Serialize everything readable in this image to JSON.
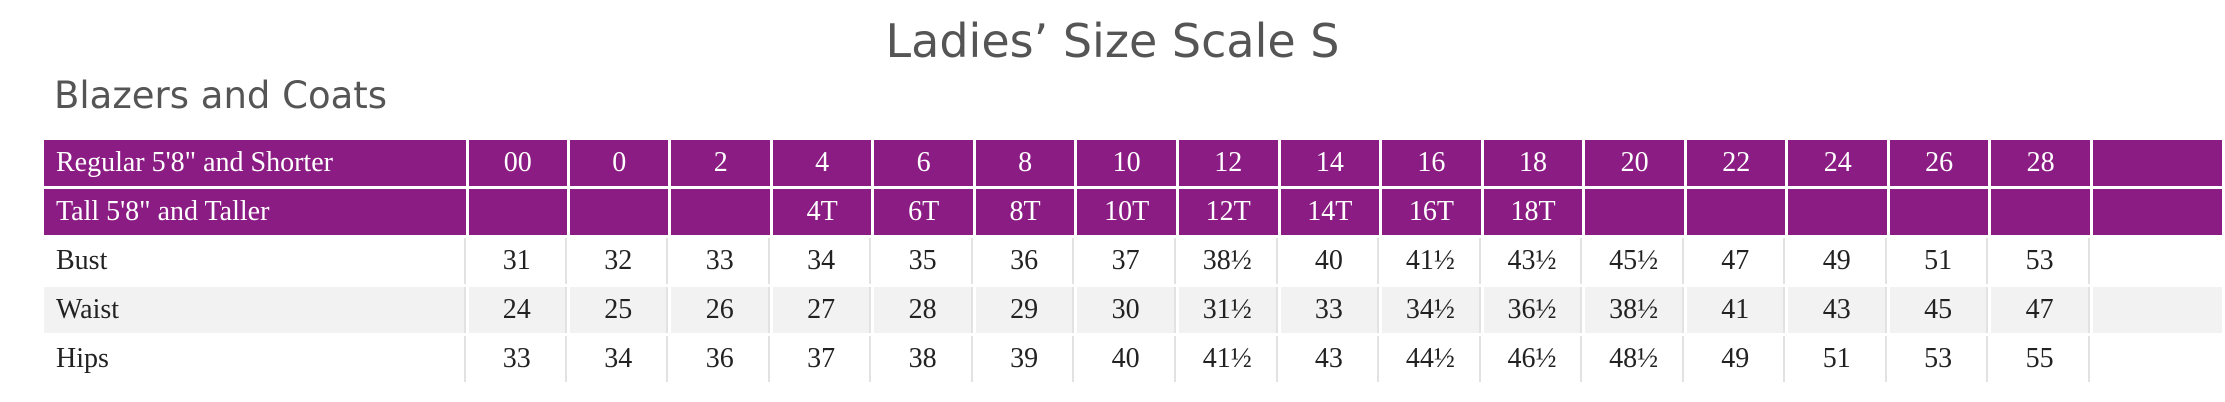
{
  "title": "Ladies’ Size Scale S",
  "subtitle": "Blazers and Coats",
  "table": {
    "header_rows": [
      {
        "label": "Regular 5'8\" and Shorter",
        "cells": [
          "00",
          "0",
          "2",
          "4",
          "6",
          "8",
          "10",
          "12",
          "14",
          "16",
          "18",
          "20",
          "22",
          "24",
          "26",
          "28"
        ]
      },
      {
        "label": "Tall 5'8\" and Taller",
        "cells": [
          null,
          null,
          null,
          "4T",
          "6T",
          "8T",
          "10T",
          "12T",
          "14T",
          "16T",
          "18T",
          null,
          null,
          null,
          null,
          null
        ]
      }
    ],
    "rows": [
      {
        "label": "Bust",
        "cells": [
          "31",
          "32",
          "33",
          "34",
          "35",
          "36",
          "37",
          "38½",
          "40",
          "41½",
          "43½",
          "45½",
          "47",
          "49",
          "51",
          "53"
        ]
      },
      {
        "label": "Waist",
        "cells": [
          "24",
          "25",
          "26",
          "27",
          "28",
          "29",
          "30",
          "31½",
          "33",
          "34½",
          "36½",
          "38½",
          "41",
          "43",
          "45",
          "47"
        ]
      },
      {
        "label": "Hips",
        "cells": [
          "33",
          "34",
          "36",
          "37",
          "38",
          "39",
          "40",
          "41½",
          "43",
          "44½",
          "46½",
          "48½",
          "49",
          "51",
          "53",
          "55"
        ]
      }
    ]
  }
}
